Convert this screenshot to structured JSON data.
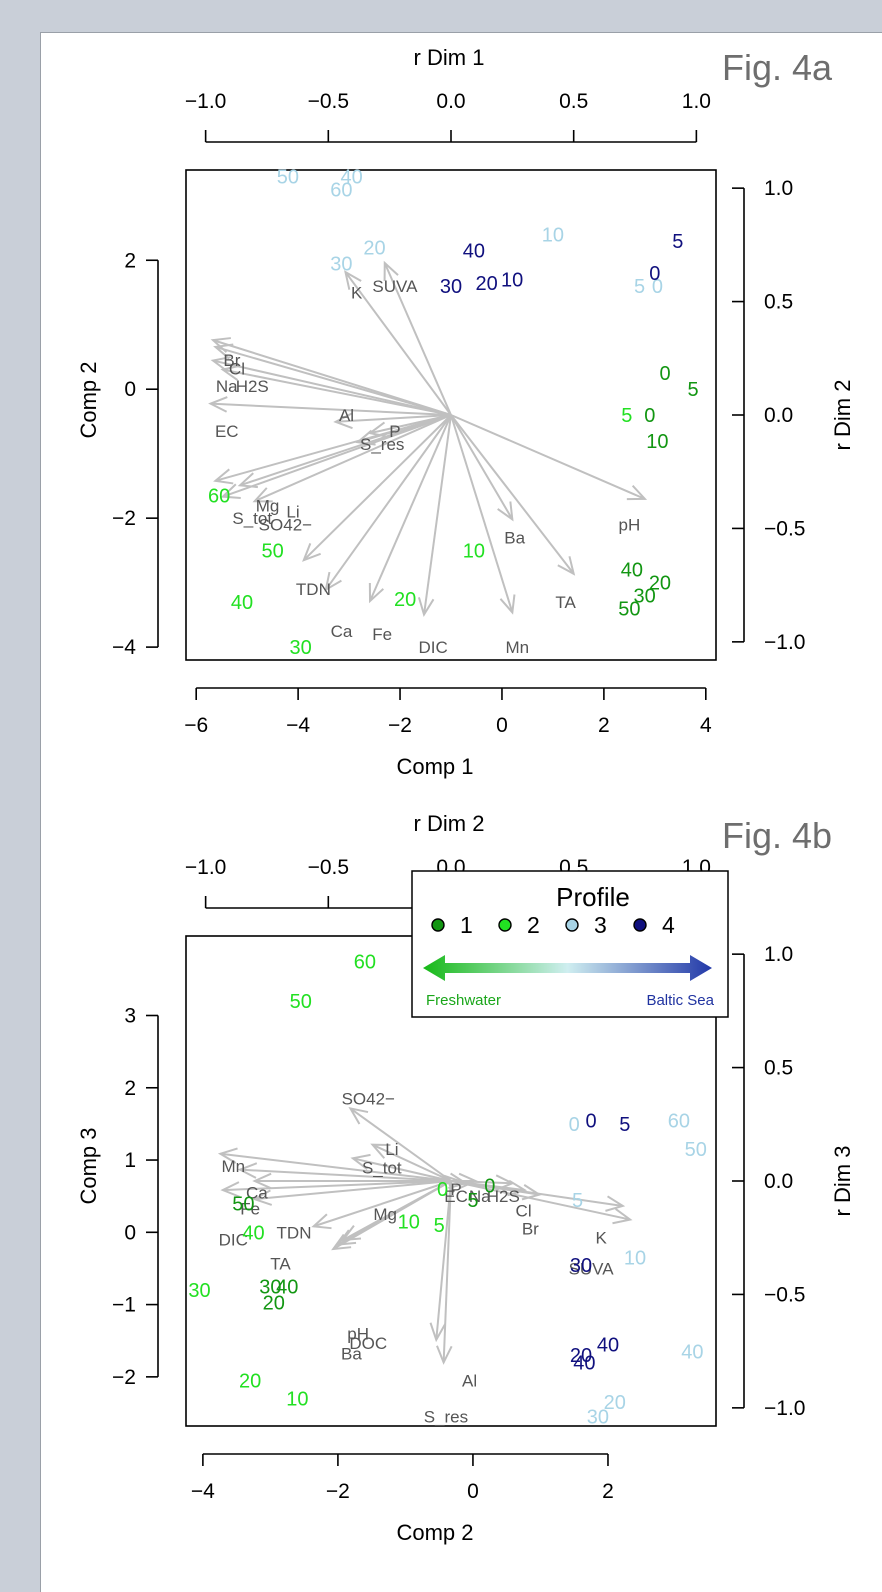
{
  "colors": {
    "profile1": "#129612",
    "profile2": "#22e022",
    "profile3": "#a8d4e6",
    "profile4": "#10107e",
    "arrow": "#c0c0c0",
    "var_label": "#555555",
    "fig_label": "#6e6e6e",
    "freshwater": "#1aa61a",
    "baltic": "#2033a0"
  },
  "figure_labels": [
    "Fig. 4a",
    "Fig. 4b"
  ],
  "legend": {
    "title": "Profile",
    "items": [
      {
        "label": "1",
        "color": "#129612",
        "icon": "filled-circle"
      },
      {
        "label": "2",
        "color": "#22e022",
        "icon": "filled-circle"
      },
      {
        "label": "3",
        "color": "#a8d4e6",
        "icon": "filled-circle"
      },
      {
        "label": "4",
        "color": "#10107e",
        "icon": "filled-circle"
      }
    ],
    "left_label": "Freshwater",
    "right_label": "Baltic Sea",
    "icon": "double-arrow-gradient"
  },
  "chart_data": [
    {
      "type": "scatter",
      "title": "Fig. 4a",
      "xlabel": "Comp 1",
      "ylabel": "Comp 2",
      "top_label": "r Dim 1",
      "right_label": "r Dim 2",
      "xlim": [
        -6.2,
        4.2
      ],
      "ylim": [
        -4.2,
        3.4
      ],
      "xticks": [
        -6,
        -4,
        -2,
        0,
        2,
        4
      ],
      "yticks": [
        -4,
        -2,
        0,
        2
      ],
      "r_lim": [
        -1.08,
        1.08
      ],
      "top_ticks": [
        "−1.0",
        "−0.5",
        "0.0",
        "0.5",
        "1.0"
      ],
      "right_ticks": [
        "1.0",
        "0.5",
        "0.0",
        "−0.5",
        "−1.0"
      ],
      "x_tick_labels": [
        "−6",
        "−4",
        "−2",
        "0",
        "2",
        "4"
      ],
      "y_tick_labels": [
        "−4",
        "−2",
        "0",
        "2"
      ],
      "arrows": [
        {
          "label": "Br",
          "rx": -0.97,
          "ry": 0.33
        },
        {
          "label": "Cl",
          "rx": -0.96,
          "ry": 0.3
        },
        {
          "label": "Na",
          "rx": -0.97,
          "ry": 0.24
        },
        {
          "label": "H2S",
          "rx": -0.93,
          "ry": 0.2
        },
        {
          "label": "EC",
          "rx": -0.98,
          "ry": 0.05
        },
        {
          "label": "K",
          "rx": -0.43,
          "ry": 0.63
        },
        {
          "label": "SUVA",
          "rx": -0.27,
          "ry": 0.67
        },
        {
          "label": "Al",
          "rx": -0.47,
          "ry": -0.03
        },
        {
          "label": "P",
          "rx": -0.33,
          "ry": -0.08
        },
        {
          "label": "S_res",
          "rx": -0.38,
          "ry": -0.12
        },
        {
          "label": "Mg",
          "rx": -0.96,
          "ry": -0.29
        },
        {
          "label": "Li",
          "rx": -0.86,
          "ry": -0.31
        },
        {
          "label": "S_tot",
          "rx": -0.93,
          "ry": -0.36
        },
        {
          "label": "SO42−",
          "rx": -0.8,
          "ry": -0.38
        },
        {
          "label": "TDN",
          "rx": -0.6,
          "ry": -0.64
        },
        {
          "label": "Ca",
          "rx": -0.51,
          "ry": -0.77
        },
        {
          "label": "Fe",
          "rx": -0.33,
          "ry": -0.82
        },
        {
          "label": "DIC",
          "rx": -0.11,
          "ry": -0.88
        },
        {
          "label": "Mn",
          "rx": 0.25,
          "ry": -0.87
        },
        {
          "label": "Ba",
          "rx": 0.25,
          "ry": -0.46
        },
        {
          "label": "TA",
          "rx": 0.5,
          "ry": -0.7
        },
        {
          "label": "pH",
          "rx": 0.79,
          "ry": -0.37
        }
      ],
      "var_labels": [
        {
          "text": "Br",
          "x": -5.3,
          "y": 0.45
        },
        {
          "text": "Cl",
          "x": -5.2,
          "y": 0.32
        },
        {
          "text": "Na",
          "x": -5.4,
          "y": 0.05
        },
        {
          "text": "H2S",
          "x": -4.9,
          "y": 0.05
        },
        {
          "text": "EC",
          "x": -5.4,
          "y": -0.65
        },
        {
          "text": "K",
          "x": -2.85,
          "y": 1.5
        },
        {
          "text": "SUVA",
          "x": -2.1,
          "y": 1.6
        },
        {
          "text": "Al",
          "x": -3.05,
          "y": -0.4
        },
        {
          "text": "P",
          "x": -2.1,
          "y": -0.65
        },
        {
          "text": "S_res",
          "x": -2.35,
          "y": -0.85
        },
        {
          "text": "Mg",
          "x": -4.6,
          "y": -1.8
        },
        {
          "text": "Li",
          "x": -4.1,
          "y": -1.9
        },
        {
          "text": "S_tot",
          "x": -4.9,
          "y": -2.0
        },
        {
          "text": "SO42−",
          "x": -4.25,
          "y": -2.1
        },
        {
          "text": "TDN",
          "x": -3.7,
          "y": -3.1
        },
        {
          "text": "Ca",
          "x": -3.15,
          "y": -3.75
        },
        {
          "text": "Fe",
          "x": -2.35,
          "y": -3.8
        },
        {
          "text": "DIC",
          "x": -1.35,
          "y": -4.0
        },
        {
          "text": "Mn",
          "x": 0.3,
          "y": -4.0
        },
        {
          "text": "Ba",
          "x": 0.25,
          "y": -2.3
        },
        {
          "text": "TA",
          "x": 1.25,
          "y": -3.3
        },
        {
          "text": "pH",
          "x": 2.5,
          "y": -2.1
        }
      ],
      "points": [
        {
          "label": "50",
          "profile": 3,
          "x": -4.2,
          "y": 3.3
        },
        {
          "label": "40",
          "profile": 3,
          "x": -2.95,
          "y": 3.3
        },
        {
          "label": "60",
          "profile": 3,
          "x": -3.15,
          "y": 3.1
        },
        {
          "label": "30",
          "profile": 3,
          "x": -3.15,
          "y": 1.95
        },
        {
          "label": "20",
          "profile": 3,
          "x": -2.5,
          "y": 2.2
        },
        {
          "label": "10",
          "profile": 3,
          "x": 1.0,
          "y": 2.4
        },
        {
          "label": "5",
          "profile": 3,
          "x": 2.7,
          "y": 1.6
        },
        {
          "label": "0",
          "profile": 3,
          "x": 3.05,
          "y": 1.6
        },
        {
          "label": "40",
          "profile": 4,
          "x": -0.55,
          "y": 2.15
        },
        {
          "label": "30",
          "profile": 4,
          "x": -1.0,
          "y": 1.6
        },
        {
          "label": "20",
          "profile": 4,
          "x": -0.3,
          "y": 1.65
        },
        {
          "label": "10",
          "profile": 4,
          "x": 0.2,
          "y": 1.7
        },
        {
          "label": "5",
          "profile": 4,
          "x": 3.45,
          "y": 2.3
        },
        {
          "label": "0",
          "profile": 4,
          "x": 3.0,
          "y": 1.8
        },
        {
          "label": "0",
          "profile": 1,
          "x": 3.2,
          "y": 0.25
        },
        {
          "label": "5",
          "profile": 1,
          "x": 3.75,
          "y": 0.0
        },
        {
          "label": "0",
          "profile": 1,
          "x": 2.9,
          "y": -0.4
        },
        {
          "label": "10",
          "profile": 1,
          "x": 3.05,
          "y": -0.8
        },
        {
          "label": "40",
          "profile": 1,
          "x": 2.55,
          "y": -2.8
        },
        {
          "label": "20",
          "profile": 1,
          "x": 3.1,
          "y": -3.0
        },
        {
          "label": "30",
          "profile": 1,
          "x": 2.8,
          "y": -3.2
        },
        {
          "label": "50",
          "profile": 1,
          "x": 2.5,
          "y": -3.4
        },
        {
          "label": "5",
          "profile": 2,
          "x": 2.45,
          "y": -0.4
        },
        {
          "label": "10",
          "profile": 2,
          "x": -0.55,
          "y": -2.5
        },
        {
          "label": "20",
          "profile": 2,
          "x": -1.9,
          "y": -3.25
        },
        {
          "label": "60",
          "profile": 2,
          "x": -5.55,
          "y": -1.65
        },
        {
          "label": "50",
          "profile": 2,
          "x": -4.5,
          "y": -2.5
        },
        {
          "label": "40",
          "profile": 2,
          "x": -5.1,
          "y": -3.3
        },
        {
          "label": "30",
          "profile": 2,
          "x": -3.95,
          "y": -4.0
        }
      ]
    },
    {
      "type": "scatter",
      "title": "Fig. 4b",
      "xlabel": "Comp 2",
      "ylabel": "Comp 3",
      "top_label": "r Dim 2",
      "right_label": "r Dim 3",
      "xlim": [
        -4.25,
        3.6
      ],
      "ylim": [
        -2.68,
        4.1
      ],
      "xticks": [
        -4,
        -2,
        0,
        2
      ],
      "yticks": [
        -2,
        -1,
        0,
        1,
        2,
        3
      ],
      "r_lim": [
        -1.08,
        1.08
      ],
      "top_ticks": [
        "−1.0",
        "−0.5",
        "0.0",
        "0.5",
        "1.0"
      ],
      "right_ticks": [
        "1.0",
        "0.5",
        "0.0",
        "−0.5",
        "−1.0"
      ],
      "x_tick_labels": [
        "−4",
        "−2",
        "0",
        "2"
      ],
      "y_tick_labels": [
        "−2",
        "−1",
        "0",
        "1",
        "2",
        "3"
      ],
      "arrows": [
        {
          "label": "Mn",
          "rx": -0.94,
          "ry": 0.12
        },
        {
          "label": "Ca",
          "rx": -0.86,
          "ry": 0.05
        },
        {
          "label": "TDN",
          "rx": -0.8,
          "ry": 0.0
        },
        {
          "label": "DIC",
          "rx": -0.93,
          "ry": -0.04
        },
        {
          "label": "TA",
          "rx": -0.8,
          "ry": -0.08
        },
        {
          "label": "SO42−",
          "rx": -0.41,
          "ry": 0.32
        },
        {
          "label": "Li",
          "rx": -0.32,
          "ry": 0.16
        },
        {
          "label": "S_tot",
          "rx": -0.4,
          "ry": 0.1
        },
        {
          "label": "Mg",
          "rx": -0.56,
          "ry": -0.2
        },
        {
          "label": "pH",
          "rx": -0.44,
          "ry": -0.26
        },
        {
          "label": "DOC",
          "rx": -0.46,
          "ry": -0.28
        },
        {
          "label": "Ba",
          "rx": -0.48,
          "ry": -0.3
        },
        {
          "label": "Al",
          "rx": -0.03,
          "ry": -0.8
        },
        {
          "label": "S_res",
          "rx": -0.06,
          "ry": -0.7
        },
        {
          "label": "P",
          "rx": -0.02,
          "ry": 0.02
        },
        {
          "label": "EC",
          "rx": 0.06,
          "ry": -0.01
        },
        {
          "label": "Na",
          "rx": 0.1,
          "ry": 0.0
        },
        {
          "label": "H2S",
          "rx": 0.25,
          "ry": -0.01
        },
        {
          "label": "Cl",
          "rx": 0.3,
          "ry": -0.04
        },
        {
          "label": "Br",
          "rx": 0.36,
          "ry": -0.06
        },
        {
          "label": "K",
          "rx": 0.7,
          "ry": -0.11
        },
        {
          "label": "SUVA",
          "rx": 0.73,
          "ry": -0.17
        }
      ],
      "var_labels": [
        {
          "text": "SO42−",
          "x": -1.55,
          "y": 1.85
        },
        {
          "text": "Li",
          "x": -1.2,
          "y": 1.15
        },
        {
          "text": "S_tot",
          "x": -1.35,
          "y": 0.9
        },
        {
          "text": "P",
          "x": -0.25,
          "y": 0.6
        },
        {
          "text": "Mn",
          "x": -3.55,
          "y": 0.92
        },
        {
          "text": "Ca",
          "x": -3.2,
          "y": 0.55
        },
        {
          "text": "Fe",
          "x": -3.3,
          "y": 0.33
        },
        {
          "text": "TDN",
          "x": -2.65,
          "y": 0.0
        },
        {
          "text": "DIC",
          "x": -3.55,
          "y": -0.1
        },
        {
          "text": "TA",
          "x": -2.85,
          "y": -0.43
        },
        {
          "text": "Mg",
          "x": -1.3,
          "y": 0.25
        },
        {
          "text": "pH",
          "x": -1.7,
          "y": -1.4
        },
        {
          "text": "DOC",
          "x": -1.55,
          "y": -1.53
        },
        {
          "text": "Ba",
          "x": -1.8,
          "y": -1.68
        },
        {
          "text": "Al",
          "x": -0.05,
          "y": -2.05
        },
        {
          "text": "S_res",
          "x": -0.4,
          "y": -2.55
        },
        {
          "text": "EC",
          "x": -0.25,
          "y": 0.5
        },
        {
          "text": "Na",
          "x": 0.1,
          "y": 0.5
        },
        {
          "text": "H2S",
          "x": 0.45,
          "y": 0.5
        },
        {
          "text": "Cl",
          "x": 0.75,
          "y": 0.3
        },
        {
          "text": "Br",
          "x": 0.85,
          "y": 0.05
        },
        {
          "text": "K",
          "x": 1.9,
          "y": -0.07
        },
        {
          "text": "SUVA",
          "x": 1.75,
          "y": -0.5
        }
      ],
      "points": [
        {
          "label": "60",
          "profile": 2,
          "x": -1.6,
          "y": 3.75
        },
        {
          "label": "50",
          "profile": 2,
          "x": -2.55,
          "y": 3.2
        },
        {
          "label": "0",
          "profile": 2,
          "x": -0.45,
          "y": 0.6
        },
        {
          "label": "10",
          "profile": 2,
          "x": -0.95,
          "y": 0.15
        },
        {
          "label": "5",
          "profile": 2,
          "x": -0.5,
          "y": 0.1
        },
        {
          "label": "40",
          "profile": 2,
          "x": -3.25,
          "y": 0.0
        },
        {
          "label": "30",
          "profile": 2,
          "x": -4.05,
          "y": -0.8
        },
        {
          "label": "20",
          "profile": 2,
          "x": -3.3,
          "y": -2.05
        },
        {
          "label": "10",
          "profile": 2,
          "x": -2.6,
          "y": -2.3
        },
        {
          "label": "0",
          "profile": 1,
          "x": 0.25,
          "y": 0.65
        },
        {
          "label": "5",
          "profile": 1,
          "x": 0.0,
          "y": 0.45
        },
        {
          "label": "50",
          "profile": 1,
          "x": -3.4,
          "y": 0.4
        },
        {
          "label": "30",
          "profile": 1,
          "x": -3.0,
          "y": -0.75
        },
        {
          "label": "40",
          "profile": 1,
          "x": -2.75,
          "y": -0.75
        },
        {
          "label": "20",
          "profile": 1,
          "x": -2.95,
          "y": -0.97
        },
        {
          "label": "0",
          "profile": 3,
          "x": 1.5,
          "y": 1.5
        },
        {
          "label": "60",
          "profile": 3,
          "x": 3.05,
          "y": 1.55
        },
        {
          "label": "50",
          "profile": 3,
          "x": 3.3,
          "y": 1.15
        },
        {
          "label": "5",
          "profile": 3,
          "x": 1.55,
          "y": 0.45
        },
        {
          "label": "10",
          "profile": 3,
          "x": 2.4,
          "y": -0.35
        },
        {
          "label": "40",
          "profile": 3,
          "x": 3.25,
          "y": -1.65
        },
        {
          "label": "20",
          "profile": 3,
          "x": 2.1,
          "y": -2.35
        },
        {
          "label": "30",
          "profile": 3,
          "x": 1.85,
          "y": -2.55
        },
        {
          "label": "0",
          "profile": 4,
          "x": 1.75,
          "y": 1.55
        },
        {
          "label": "5",
          "profile": 4,
          "x": 2.25,
          "y": 1.5
        },
        {
          "label": "30",
          "profile": 4,
          "x": 1.6,
          "y": -0.45
        },
        {
          "label": "40",
          "profile": 4,
          "x": 2.0,
          "y": -1.55
        },
        {
          "label": "20",
          "profile": 4,
          "x": 1.6,
          "y": -1.7
        },
        {
          "label": "40",
          "profile": 4,
          "x": 1.65,
          "y": -1.8
        }
      ]
    }
  ]
}
